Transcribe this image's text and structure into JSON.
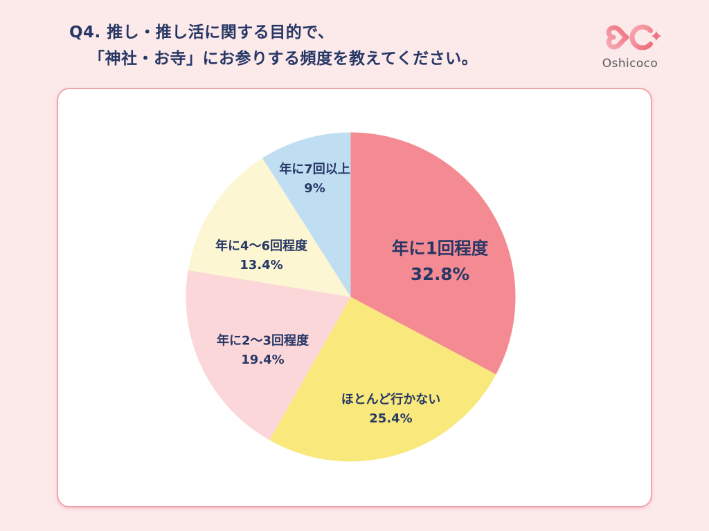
{
  "page": {
    "background": "#FCE9E9"
  },
  "header": {
    "title_line1": "Q4. 推し・推し活に関する目的で、",
    "title_line2": "「神社・お寺」にお参りする頻度を教えてください。",
    "title_color": "#263765"
  },
  "logo": {
    "text": "Oshicoco",
    "mark_color_light": "#F7ABB2",
    "mark_color_dark": "#EC6E7D",
    "text_color": "#58595B"
  },
  "chart_data": {
    "type": "pie",
    "title": "Q4. 推し・推し活に関する目的で、「神社・お寺」にお参りする頻度を教えてください。",
    "legend": "none",
    "direction": "clockwise",
    "start_angle_deg": 0,
    "label_color": "#263765",
    "slices": [
      {
        "label": "年に1回程度",
        "value": 32.8,
        "display": "32.8%",
        "color": "#F48A92",
        "label_offset": [
          129,
          -55
        ],
        "emphasis": true
      },
      {
        "label": "ほとんど行かない",
        "value": 25.4,
        "display": "25.4%",
        "color": "#F9E97C",
        "label_offset": [
          58,
          159
        ],
        "emphasis": false
      },
      {
        "label": "年に2〜3回程度",
        "value": 19.4,
        "display": "19.4%",
        "color": "#FCD7DA",
        "label_offset": [
          -127,
          74
        ],
        "emphasis": false
      },
      {
        "label": "年に4〜6回程度",
        "value": 13.4,
        "display": "13.4%",
        "color": "#FDF6D2",
        "label_offset": [
          -129,
          -63
        ],
        "emphasis": false
      },
      {
        "label": "年に7回以上",
        "value": 9.0,
        "display": "9%",
        "color": "#C0DEF2",
        "label_offset": [
          -52,
          -174
        ],
        "emphasis": false
      }
    ]
  }
}
